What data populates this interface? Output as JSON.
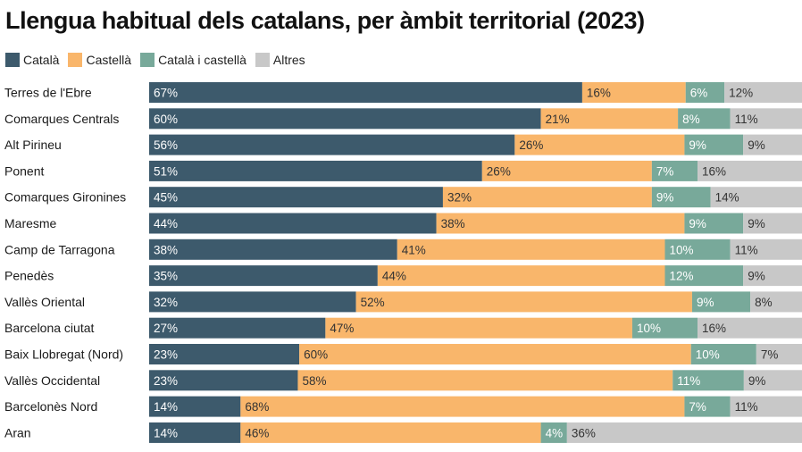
{
  "chart_data": {
    "type": "bar",
    "orientation": "horizontal",
    "stacked": true,
    "title": "Llengua habitual dels catalans, per àmbit territorial (2023)",
    "categories": [
      "Terres de l'Ebre",
      "Comarques Centrals",
      "Alt Pirineu",
      "Ponent",
      "Comarques Gironines",
      "Maresme",
      "Camp de Tarragona",
      "Penedès",
      "Vallès Oriental",
      "Barcelona ciutat",
      "Baix Llobregat (Nord)",
      "Vallès Occidental",
      "Barcelonès Nord",
      "Aran"
    ],
    "series": [
      {
        "name": "Català",
        "color": "#3d5a6c",
        "label_color": "#ffffff",
        "values": [
          67,
          60,
          56,
          51,
          45,
          44,
          38,
          35,
          32,
          27,
          23,
          23,
          14,
          14
        ]
      },
      {
        "name": "Castellà",
        "color": "#f9b66b",
        "label_color": "#333333",
        "values": [
          16,
          21,
          26,
          26,
          32,
          38,
          41,
          44,
          52,
          47,
          60,
          58,
          68,
          46
        ]
      },
      {
        "name": "Català i castellà",
        "color": "#78a99a",
        "label_color": "#ffffff",
        "values": [
          6,
          8,
          9,
          7,
          9,
          9,
          10,
          12,
          9,
          10,
          10,
          11,
          7,
          4
        ]
      },
      {
        "name": "Altres",
        "color": "#c8c8c8",
        "label_color": "#333333",
        "values": [
          12,
          11,
          9,
          16,
          14,
          9,
          11,
          9,
          8,
          16,
          7,
          9,
          11,
          36
        ]
      }
    ],
    "value_suffix": "%",
    "xlim": [
      0,
      100
    ]
  }
}
